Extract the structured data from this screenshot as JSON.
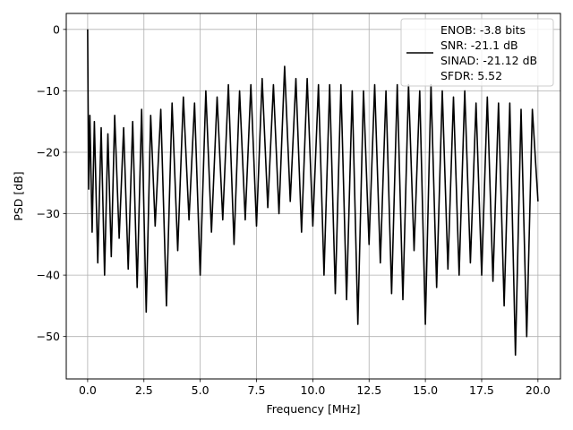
{
  "chart_data": {
    "type": "line",
    "xlabel": "Frequency [MHz]",
    "ylabel": "PSD [dB]",
    "xlim": [
      -0.95,
      21.0
    ],
    "ylim": [
      -56.9,
      2.6
    ],
    "xticks": [
      0.0,
      2.5,
      5.0,
      7.5,
      10.0,
      12.5,
      15.0,
      17.5,
      20.0
    ],
    "xtick_labels": [
      "0.0",
      "2.5",
      "5.0",
      "7.5",
      "10.0",
      "12.5",
      "15.0",
      "17.5",
      "20.0"
    ],
    "yticks": [
      0,
      -10,
      -20,
      -30,
      -40,
      -50
    ],
    "ytick_labels": [
      "0",
      "−10",
      "−20",
      "−30",
      "−40",
      "−50"
    ],
    "grid": true,
    "legend_position": "top-right",
    "line_color": "#000000",
    "series": [
      {
        "name": "ENOB: -3.8 bits\nSNR: -21.1 dB\nSINAD: -21.12 dB\nSFDR: 5.52",
        "legend_lines": [
          "ENOB: -3.8 bits",
          "SNR: -21.1 dB",
          "SINAD: -21.12 dB",
          "SFDR: 5.52"
        ],
        "x": [
          0.0,
          0.02,
          0.05,
          0.1,
          0.2,
          0.3,
          0.45,
          0.6,
          0.75,
          0.9,
          1.05,
          1.2,
          1.4,
          1.6,
          1.8,
          2.0,
          2.2,
          2.4,
          2.6,
          2.8,
          3.0,
          3.25,
          3.5,
          3.75,
          4.0,
          4.25,
          4.5,
          4.75,
          5.0,
          5.25,
          5.5,
          5.75,
          6.0,
          6.25,
          6.5,
          6.75,
          7.0,
          7.25,
          7.5,
          7.75,
          8.0,
          8.25,
          8.5,
          8.75,
          9.0,
          9.25,
          9.5,
          9.75,
          10.0,
          10.25,
          10.5,
          10.75,
          11.0,
          11.25,
          11.5,
          11.75,
          12.0,
          12.25,
          12.5,
          12.75,
          13.0,
          13.25,
          13.5,
          13.75,
          14.0,
          14.25,
          14.5,
          14.75,
          15.0,
          15.25,
          15.5,
          15.75,
          16.0,
          16.25,
          16.5,
          16.75,
          17.0,
          17.25,
          17.5,
          17.75,
          18.0,
          18.25,
          18.5,
          18.75,
          19.0,
          19.25,
          19.5,
          19.75,
          20.0
        ],
        "y": [
          0.0,
          -12.0,
          -26.0,
          -14.0,
          -33.0,
          -15.0,
          -38.0,
          -16.0,
          -40.0,
          -17.0,
          -37.0,
          -14.0,
          -34.0,
          -16.0,
          -39.0,
          -15.0,
          -42.0,
          -13.0,
          -46.0,
          -14.0,
          -32.0,
          -13.0,
          -45.0,
          -12.0,
          -36.0,
          -11.0,
          -31.0,
          -12.0,
          -40.0,
          -10.0,
          -33.0,
          -11.0,
          -31.0,
          -9.0,
          -35.0,
          -10.0,
          -31.0,
          -9.0,
          -32.0,
          -8.0,
          -29.0,
          -9.0,
          -30.0,
          -6.0,
          -28.0,
          -8.0,
          -33.0,
          -8.0,
          -32.0,
          -9.0,
          -40.0,
          -9.0,
          -43.0,
          -9.0,
          -44.0,
          -10.0,
          -48.0,
          -10.0,
          -35.0,
          -9.0,
          -38.0,
          -10.0,
          -43.0,
          -9.0,
          -44.0,
          -9.0,
          -36.0,
          -10.0,
          -48.0,
          -9.0,
          -42.0,
          -10.0,
          -39.0,
          -11.0,
          -40.0,
          -10.0,
          -38.0,
          -12.0,
          -40.0,
          -11.0,
          -41.0,
          -12.0,
          -45.0,
          -12.0,
          -53.0,
          -13.0,
          -50.0,
          -13.0,
          -28.0
        ]
      }
    ]
  }
}
